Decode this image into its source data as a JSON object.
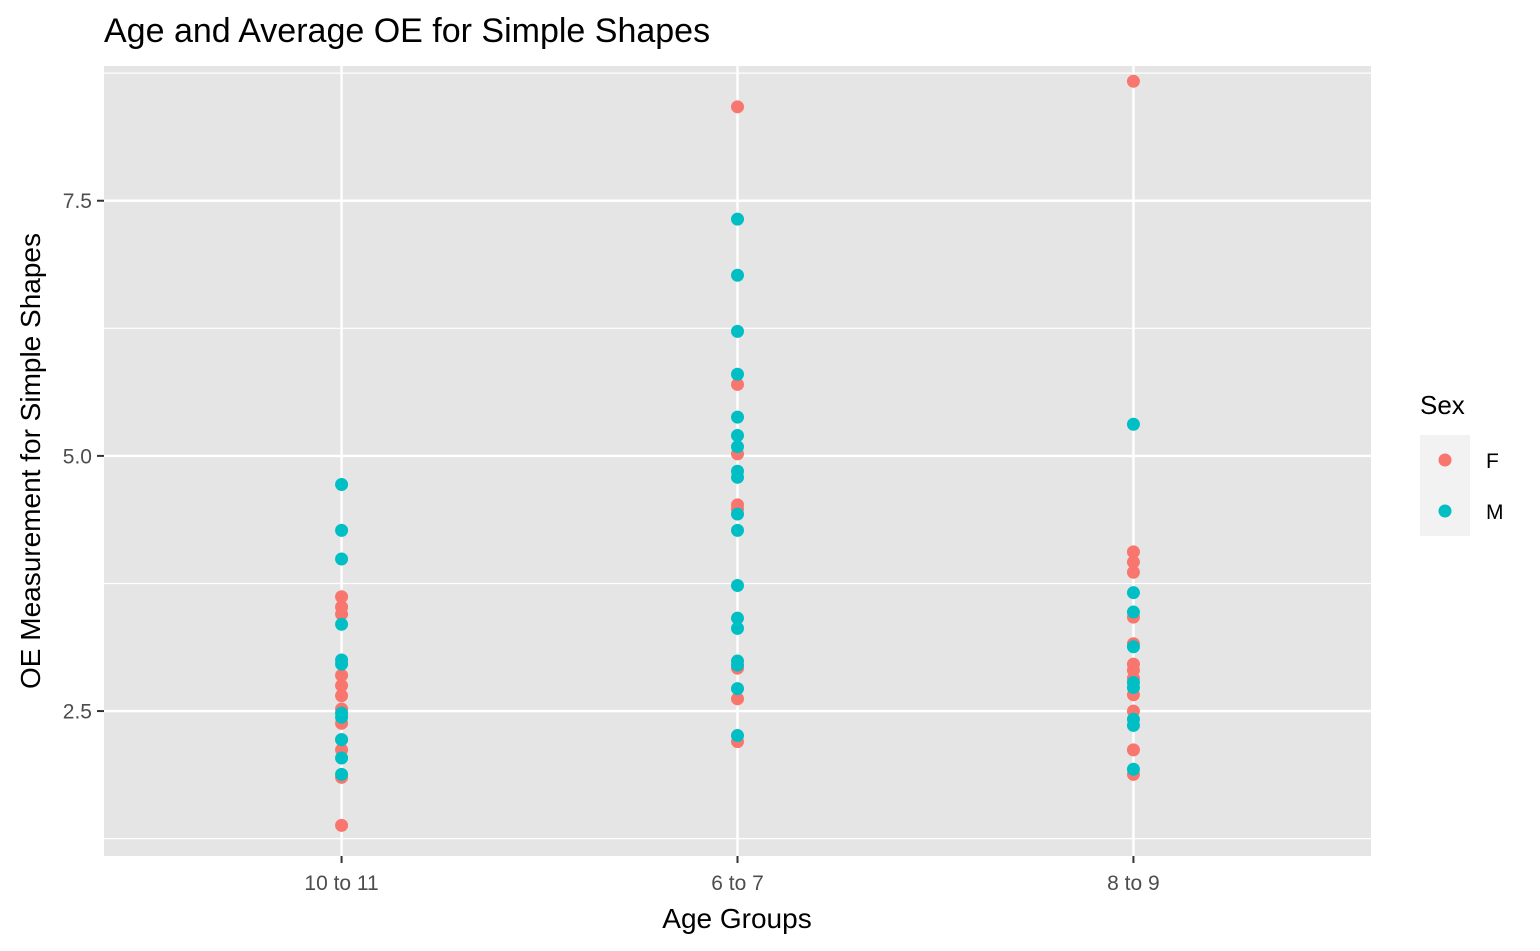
{
  "chart_data": {
    "type": "scatter",
    "title": "Age and Average OE for Simple Shapes",
    "xlabel": "Age Groups",
    "ylabel": "OE Measurement for Simple Shapes",
    "categories": [
      "10 to 11",
      "6 to 7",
      "8 to 9"
    ],
    "y_ticks": [
      {
        "value": 2.5,
        "label": "2.5"
      },
      {
        "value": 5.0,
        "label": "5.0"
      },
      {
        "value": 7.5,
        "label": "7.5"
      }
    ],
    "ylim": [
      1.08,
      8.82
    ],
    "grid": true,
    "background": "#e5e5e5",
    "legend": {
      "title": "Sex",
      "position": "right",
      "entries": [
        {
          "label": "F",
          "color": "#f8766d"
        },
        {
          "label": "M",
          "color": "#00bfc4"
        }
      ]
    },
    "series": [
      {
        "name": "F",
        "color": "#f8766d",
        "points": [
          {
            "x": "10 to 11",
            "y": 3.62
          },
          {
            "x": "10 to 11",
            "y": 3.52
          },
          {
            "x": "10 to 11",
            "y": 3.45
          },
          {
            "x": "10 to 11",
            "y": 2.85
          },
          {
            "x": "10 to 11",
            "y": 2.75
          },
          {
            "x": "10 to 11",
            "y": 2.65
          },
          {
            "x": "10 to 11",
            "y": 2.52
          },
          {
            "x": "10 to 11",
            "y": 2.38
          },
          {
            "x": "10 to 11",
            "y": 2.22
          },
          {
            "x": "10 to 11",
            "y": 2.12
          },
          {
            "x": "10 to 11",
            "y": 1.85
          },
          {
            "x": "10 to 11",
            "y": 1.38
          },
          {
            "x": "6 to 7",
            "y": 8.42
          },
          {
            "x": "6 to 7",
            "y": 5.7
          },
          {
            "x": "6 to 7",
            "y": 5.02
          },
          {
            "x": "6 to 7",
            "y": 4.52
          },
          {
            "x": "6 to 7",
            "y": 4.48
          },
          {
            "x": "6 to 7",
            "y": 2.92
          },
          {
            "x": "6 to 7",
            "y": 2.62
          },
          {
            "x": "6 to 7",
            "y": 2.2
          },
          {
            "x": "8 to 9",
            "y": 8.67
          },
          {
            "x": "8 to 9",
            "y": 4.06
          },
          {
            "x": "8 to 9",
            "y": 3.96
          },
          {
            "x": "8 to 9",
            "y": 3.86
          },
          {
            "x": "8 to 9",
            "y": 3.42
          },
          {
            "x": "8 to 9",
            "y": 3.16
          },
          {
            "x": "8 to 9",
            "y": 2.96
          },
          {
            "x": "8 to 9",
            "y": 2.9
          },
          {
            "x": "8 to 9",
            "y": 2.82
          },
          {
            "x": "8 to 9",
            "y": 2.66
          },
          {
            "x": "8 to 9",
            "y": 2.5
          },
          {
            "x": "8 to 9",
            "y": 2.12
          },
          {
            "x": "8 to 9",
            "y": 1.88
          }
        ]
      },
      {
        "name": "M",
        "color": "#00bfc4",
        "points": [
          {
            "x": "10 to 11",
            "y": 4.72
          },
          {
            "x": "10 to 11",
            "y": 4.27
          },
          {
            "x": "10 to 11",
            "y": 3.99
          },
          {
            "x": "10 to 11",
            "y": 3.35
          },
          {
            "x": "10 to 11",
            "y": 3.0
          },
          {
            "x": "10 to 11",
            "y": 2.96
          },
          {
            "x": "10 to 11",
            "y": 2.48
          },
          {
            "x": "10 to 11",
            "y": 2.44
          },
          {
            "x": "10 to 11",
            "y": 2.22
          },
          {
            "x": "10 to 11",
            "y": 2.04
          },
          {
            "x": "10 to 11",
            "y": 1.88
          },
          {
            "x": "6 to 7",
            "y": 7.32
          },
          {
            "x": "6 to 7",
            "y": 6.77
          },
          {
            "x": "6 to 7",
            "y": 6.22
          },
          {
            "x": "6 to 7",
            "y": 5.8
          },
          {
            "x": "6 to 7",
            "y": 5.38
          },
          {
            "x": "6 to 7",
            "y": 5.2
          },
          {
            "x": "6 to 7",
            "y": 5.09
          },
          {
            "x": "6 to 7",
            "y": 4.85
          },
          {
            "x": "6 to 7",
            "y": 4.79
          },
          {
            "x": "6 to 7",
            "y": 4.43
          },
          {
            "x": "6 to 7",
            "y": 4.27
          },
          {
            "x": "6 to 7",
            "y": 3.73
          },
          {
            "x": "6 to 7",
            "y": 3.41
          },
          {
            "x": "6 to 7",
            "y": 3.31
          },
          {
            "x": "6 to 7",
            "y": 2.99
          },
          {
            "x": "6 to 7",
            "y": 2.95
          },
          {
            "x": "6 to 7",
            "y": 2.72
          },
          {
            "x": "6 to 7",
            "y": 2.26
          },
          {
            "x": "8 to 9",
            "y": 5.31
          },
          {
            "x": "8 to 9",
            "y": 3.66
          },
          {
            "x": "8 to 9",
            "y": 3.47
          },
          {
            "x": "8 to 9",
            "y": 3.13
          },
          {
            "x": "8 to 9",
            "y": 2.78
          },
          {
            "x": "8 to 9",
            "y": 2.73
          },
          {
            "x": "8 to 9",
            "y": 2.42
          },
          {
            "x": "8 to 9",
            "y": 2.36
          },
          {
            "x": "8 to 9",
            "y": 1.93
          }
        ]
      }
    ]
  }
}
